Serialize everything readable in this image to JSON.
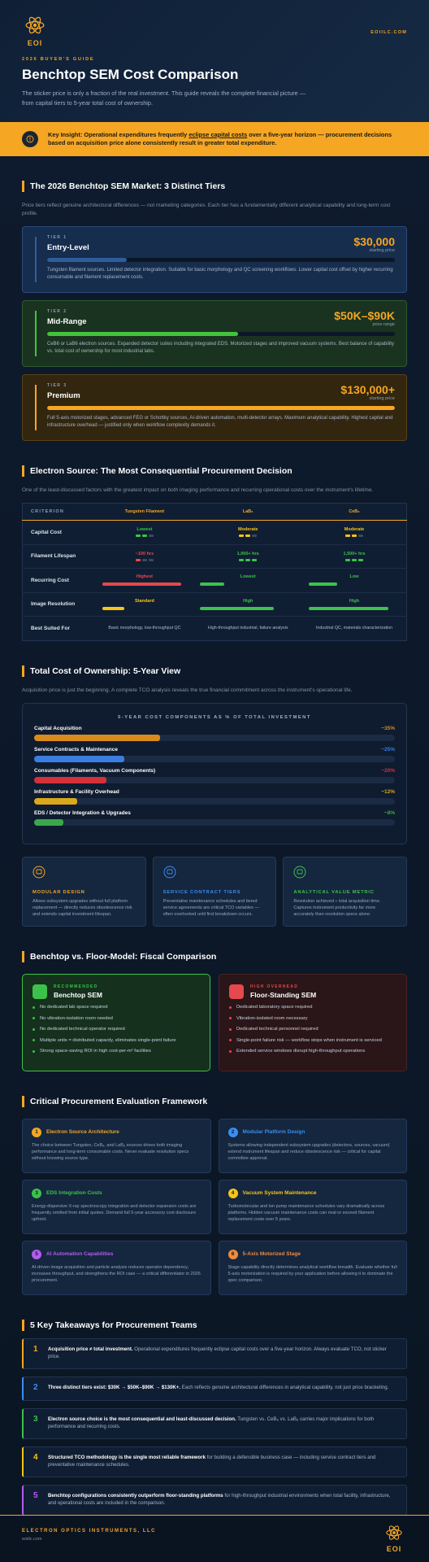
{
  "header": {
    "logo": "EOI",
    "site": "EOIILC.COM",
    "eyebrow": "2026 BUYER'S GUIDE",
    "title": "Benchtop SEM Cost Comparison",
    "intro": "The sticker price is only a fraction of the real investment. This guide reveals the complete financial picture — from capital tiers to 5-year total cost of ownership."
  },
  "insight": {
    "label": "Key Insight:",
    "text_before": "Operational expenditures frequently",
    "highlight": "eclipse capital costs",
    "text_after": "over a five-year horizon — procurement decisions based on acquisition price alone consistently result in greater total expenditure."
  },
  "tiers": {
    "title": "The 2026 Benchtop SEM Market: 3 Distinct Tiers",
    "intro": "Price tiers reflect genuine architectural differences — not marketing categories. Each tier has a fundamentally different analytical capability and long-term cost profile.",
    "items": [
      {
        "label": "TIER 1",
        "name": "Entry-Level",
        "price": "$30,000",
        "price_note": "starting price",
        "bar": 23,
        "color": "#2f5d9c",
        "description": "Tungsten filament sources. Limited detector integration. Suitable for basic morphology and QC screening workflows. Lower capital cost offset by higher recurring consumable and filament replacement costs."
      },
      {
        "label": "TIER 2",
        "name": "Mid-Range",
        "price": "$50K–$90K",
        "price_note": "price range",
        "bar": 55,
        "color": "#44c23c",
        "description": "CeB6 or LaB6 electron sources. Expanded detector suites including integrated EDS. Motorized stages and improved vacuum systems. Best balance of capability vs. total cost of ownership for most industrial labs."
      },
      {
        "label": "TIER 3",
        "name": "Premium",
        "price": "$130,000+",
        "price_note": "starting price",
        "bar": 100,
        "color": "#f5a623",
        "description": "Full 5-axis motorized stages, advanced FEG or Schottky sources, AI-driven automation, multi-detector arrays. Maximum analytical capability. Highest capital and infrastructure overhead — justified only when workflow complexity demands it."
      }
    ]
  },
  "electron_source": {
    "title": "Electron Source: The Most Consequential Procurement Decision",
    "intro": "One of the least-discussed factors with the greatest impact on both imaging performance and recurring operational costs over the instrument's lifetime.",
    "columns": [
      "CRITERION",
      "Tungsten Filament",
      "LaB₆",
      "CeB₆"
    ],
    "rows": [
      {
        "criterion": "Capital Cost",
        "style": "dots",
        "cells": [
          {
            "text": "Lowest",
            "level": 2,
            "color": "#3cc24a"
          },
          {
            "text": "Moderate",
            "level": 2,
            "color": "#f5c518"
          },
          {
            "text": "Moderate",
            "level": 2,
            "color": "#f5c518"
          }
        ]
      },
      {
        "criterion": "Filament Lifespan",
        "style": "dots",
        "cells": [
          {
            "text": "~100 hrs",
            "level": 1,
            "color": "#e5484d"
          },
          {
            "text": "1,000+ hrs",
            "level": 3,
            "color": "#3cc24a"
          },
          {
            "text": "1,500+ hrs",
            "level": 3,
            "color": "#3cc24a"
          }
        ]
      },
      {
        "criterion": "Recurring Cost",
        "style": "bar",
        "cells": [
          {
            "text": "Highest",
            "level": 90,
            "color": "#e5484d"
          },
          {
            "text": "Lowest",
            "level": 25,
            "color": "#3cc24a"
          },
          {
            "text": "Low",
            "level": 30,
            "color": "#3cc24a"
          }
        ]
      },
      {
        "criterion": "Image Resolution",
        "style": "bar",
        "cells": [
          {
            "text": "Standard",
            "level": 25,
            "color": "#f5c518"
          },
          {
            "text": "High",
            "level": 75,
            "color": "#3cc24a"
          },
          {
            "text": "High",
            "level": 85,
            "color": "#3cc24a"
          }
        ]
      },
      {
        "criterion": "Best Suited For",
        "style": "plain",
        "cells": [
          {
            "text": "Basic morphology, low-throughput QC"
          },
          {
            "text": "High-throughput industrial, failure analysis"
          },
          {
            "text": "Industrial QC, materials characterization"
          }
        ]
      }
    ]
  },
  "tco": {
    "title": "Total Cost of Ownership: 5-Year View",
    "intro": "Acquisition price is just the beginning. A complete TCO analysis reveals the true financial commitment across the instrument's operational life.",
    "cards": [
      {
        "title": "MODULAR DESIGN",
        "color": "#f5a623",
        "text": "Allows subsystem upgrades without full platform replacement — directly reduces obsolescence risk and extends capital investment lifespan."
      },
      {
        "title": "SERVICE CONTRACT TIERS",
        "color": "#3b8ef0",
        "text": "Preventative maintenance schedules and tiered service agreements are critical TCO variables — often overlooked until first breakdown occurs."
      },
      {
        "title": "ANALYTICAL VALUE METRIC",
        "color": "#3cc24a",
        "text": "Resolution achieved ÷ total acquisition time. Captures instrument productivity far more accurately than resolution specs alone."
      }
    ]
  },
  "chart_data": {
    "type": "bar",
    "orientation": "horizontal",
    "title": "5-YEAR COST COMPONENTS AS % OF TOTAL INVESTMENT",
    "categories": [
      "Capital Acquisition",
      "Service Contracts & Maintenance",
      "Consumables (Filaments, Vacuum Components)",
      "Infrastructure & Facility Overhead",
      "EDS / Detector Integration & Upgrades"
    ],
    "values": [
      35,
      25,
      20,
      12,
      8
    ],
    "value_labels": [
      "~35%",
      "~25%",
      "~20%",
      "~12%",
      "~8%"
    ],
    "colors": [
      "#d98a1c",
      "#3b7ee0",
      "#d6303a",
      "#d9a81c",
      "#3aa84a"
    ],
    "xlim": [
      0,
      100
    ]
  },
  "comparison": {
    "title": "Benchtop vs. Floor-Model: Fiscal Comparison",
    "columns": [
      {
        "badge": "RECOMMENDED",
        "name": "Benchtop SEM",
        "color": "#3cc24a",
        "items": [
          "No dedicated lab space required",
          "No vibration-isolation room needed",
          "No dedicated technical operator required",
          "Multiple units = distributed capacity, eliminates single-point failure",
          "Strong space-saving ROI in high cost-per-m² facilities"
        ]
      },
      {
        "badge": "HIGH OVERHEAD",
        "name": "Floor-Standing SEM",
        "color": "#e5484d",
        "items": [
          "Dedicated laboratory space required",
          "Vibration-isolated room necessary",
          "Dedicated technical personnel required",
          "Single-point failure risk — workflow stops when instrument is serviced",
          "Extended service windows disrupt high-throughput operations"
        ]
      }
    ]
  },
  "framework": {
    "title": "Critical Procurement Evaluation Framework",
    "items": [
      {
        "number": 1,
        "color": "#f5a623",
        "title": "Electron Source Architecture",
        "text": "The choice between Tungsten, CeB₆, and LaB₆ sources drives both imaging performance and long-term consumable costs. Never evaluate resolution specs without knowing source type."
      },
      {
        "number": 2,
        "color": "#3b8ef0",
        "title": "Modular Platform Design",
        "text": "Systems allowing independent subsystem upgrades (detectors, sources, vacuum) extend instrument lifespan and reduce obsolescence risk — critical for capital committee approval."
      },
      {
        "number": 3,
        "color": "#3cc24a",
        "title": "EDS Integration Costs",
        "text": "Energy-dispersive X-ray spectroscopy integration and detector expansion costs are frequently omitted from initial quotes. Demand full 5-year accessory cost disclosure upfront."
      },
      {
        "number": 4,
        "color": "#f5c518",
        "title": "Vacuum System Maintenance",
        "text": "Turbomolecular and ion pump maintenance schedules vary dramatically across platforms. Hidden vacuum maintenance costs can rival or exceed filament replacement costs over 5 years."
      },
      {
        "number": 5,
        "color": "#b35cf0",
        "title": "AI Automation Capabilities",
        "text": "AI-driven image acquisition and particle analysis reduces operator dependency, increases throughput, and strengthens the ROI case — a critical differentiator in 2026 procurement."
      },
      {
        "number": 6,
        "color": "#f08a3c",
        "title": "5-Axis Motorized Stage",
        "text": "Stage capability directly determines analytical workflow breadth. Evaluate whether full 5-axis motorization is required by your application before allowing it to dominate the spec comparison."
      }
    ]
  },
  "takeaways": {
    "title": "5 Key Takeaways for Procurement Teams",
    "items": [
      {
        "number": 1,
        "color": "#f5a623",
        "lead": "Acquisition price ≠ total investment.",
        "text": "Operational expenditures frequently eclipse capital costs over a five-year horizon. Always evaluate TCO, not sticker price."
      },
      {
        "number": 2,
        "color": "#3b8ef0",
        "lead": "Three distinct tiers exist: $30K → $50K–$90K → $130K+.",
        "text": "Each reflects genuine architectural differences in analytical capability, not just price bracketing."
      },
      {
        "number": 3,
        "color": "#3cc24a",
        "lead": "Electron source choice is the most consequential and least-discussed decision.",
        "text": "Tungsten vs. CeB₆ vs. LaB₆ carries major implications for both performance and recurring costs."
      },
      {
        "number": 4,
        "color": "#f5c518",
        "lead": "Structured TCO methodology is the single most reliable framework",
        "text": "for building a defensible business case — including service contract tiers and preventative maintenance schedules."
      },
      {
        "number": 5,
        "color": "#b35cf0",
        "lead": "Benchtop configurations consistently outperform floor-standing platforms",
        "text": "for high-throughput industrial environments when total facility, infrastructure, and operational costs are included in the comparison."
      }
    ]
  },
  "footer": {
    "company": "ELECTRON OPTICS INSTRUMENTS, LLC",
    "site": "eoiilc.com",
    "logo": "EOI"
  }
}
